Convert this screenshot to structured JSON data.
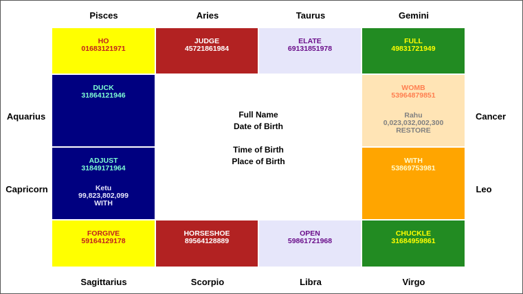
{
  "signs": {
    "pisces": "Pisces",
    "aries": "Aries",
    "taurus": "Taurus",
    "gemini": "Gemini",
    "aquarius": "Aquarius",
    "cancer": "Cancer",
    "capricorn": "Capricorn",
    "leo": "Leo",
    "sagittarius": "Sagittarius",
    "scorpio": "Scorpio",
    "libra": "Libra",
    "virgo": "Virgo"
  },
  "houses": {
    "pisces": {
      "word": "HO",
      "number": "01683121971",
      "bg": "#ffff00",
      "fg": "#c0201e"
    },
    "aries": {
      "word": "JUDGE",
      "number": "45721861984",
      "bg": "#b22222",
      "fg": "#ffffff"
    },
    "taurus": {
      "word": "ELATE",
      "number": "69131851978",
      "bg": "#e6e6fa",
      "fg": "#6a0d8a"
    },
    "gemini": {
      "word": "FULL",
      "number": "49831721949",
      "bg": "#228b22",
      "fg": "#ffff00"
    },
    "aquarius": {
      "word": "DUCK",
      "number": "31864121946",
      "bg": "#000080",
      "fg": "#7fffd4"
    },
    "cancer": {
      "word": "WOMB",
      "number": "53964879851",
      "bg": "#ffe4b5",
      "fg": "#ff7f50",
      "planet_name": "Rahu",
      "planet_degrees": "0,023,032,002,300",
      "planet_word": "RESTORE",
      "planet_fg": "#808080"
    },
    "capricorn": {
      "word": "ADJUST",
      "number": "31849171964",
      "bg": "#000080",
      "fg": "#7fffd4",
      "planet_name": "Ketu",
      "planet_degrees": "99,823,802,099",
      "planet_word": "WITH",
      "planet_fg": "#e6e6fa"
    },
    "leo": {
      "word": "WITH",
      "number": "53869753981",
      "bg": "#ffa500",
      "fg": "#fffacd"
    },
    "sagittarius": {
      "word": "FORGIVE",
      "number": "59164129178",
      "bg": "#ffff00",
      "fg": "#c0201e"
    },
    "scorpio": {
      "word": "HORSESHOE",
      "number": "89564128889",
      "bg": "#b22222",
      "fg": "#ffffff"
    },
    "libra": {
      "word": "OPEN",
      "number": "59861721968",
      "bg": "#e6e6fa",
      "fg": "#6a0d8a"
    },
    "virgo": {
      "word": "CHUCKLE",
      "number": "31684959861",
      "bg": "#228b22",
      "fg": "#ffff00"
    }
  },
  "center": {
    "full_name": "Full Name",
    "date_of_birth": "Date of Birth",
    "time_of_birth": "Time of Birth",
    "place_of_birth": "Place of Birth"
  }
}
